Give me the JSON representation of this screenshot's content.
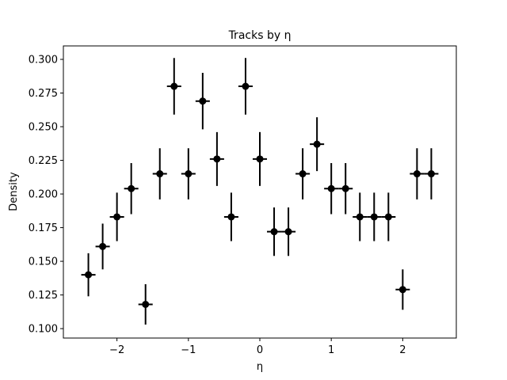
{
  "chart_data": {
    "type": "scatter",
    "title": "Tracks by η",
    "xlabel": "η",
    "ylabel": "Density",
    "xlim": [
      -2.75,
      2.75
    ],
    "ylim": [
      0.093,
      0.31
    ],
    "xticks": [
      -2,
      -1,
      0,
      1,
      2
    ],
    "xtick_labels": [
      "−2",
      "−1",
      "0",
      "1",
      "2"
    ],
    "yticks": [
      0.1,
      0.125,
      0.15,
      0.175,
      0.2,
      0.225,
      0.25,
      0.275,
      0.3
    ],
    "ytick_labels": [
      "0.100",
      "0.125",
      "0.150",
      "0.175",
      "0.200",
      "0.225",
      "0.250",
      "0.275",
      "0.300"
    ],
    "grid": false,
    "marker_color": "#000000",
    "points": [
      {
        "x": -2.4,
        "y": 0.14,
        "xerr": 0.1,
        "yerr_low": 0.016,
        "yerr_high": 0.016
      },
      {
        "x": -2.2,
        "y": 0.161,
        "xerr": 0.1,
        "yerr_low": 0.017,
        "yerr_high": 0.017
      },
      {
        "x": -2.0,
        "y": 0.183,
        "xerr": 0.1,
        "yerr_low": 0.018,
        "yerr_high": 0.018
      },
      {
        "x": -1.8,
        "y": 0.204,
        "xerr": 0.1,
        "yerr_low": 0.019,
        "yerr_high": 0.019
      },
      {
        "x": -1.6,
        "y": 0.118,
        "xerr": 0.1,
        "yerr_low": 0.015,
        "yerr_high": 0.015
      },
      {
        "x": -1.4,
        "y": 0.215,
        "xerr": 0.1,
        "yerr_low": 0.019,
        "yerr_high": 0.019
      },
      {
        "x": -1.2,
        "y": 0.28,
        "xerr": 0.1,
        "yerr_low": 0.021,
        "yerr_high": 0.021
      },
      {
        "x": -1.0,
        "y": 0.215,
        "xerr": 0.1,
        "yerr_low": 0.019,
        "yerr_high": 0.019
      },
      {
        "x": -0.8,
        "y": 0.269,
        "xerr": 0.1,
        "yerr_low": 0.021,
        "yerr_high": 0.021
      },
      {
        "x": -0.6,
        "y": 0.226,
        "xerr": 0.1,
        "yerr_low": 0.02,
        "yerr_high": 0.02
      },
      {
        "x": -0.4,
        "y": 0.183,
        "xerr": 0.1,
        "yerr_low": 0.018,
        "yerr_high": 0.018
      },
      {
        "x": -0.2,
        "y": 0.28,
        "xerr": 0.1,
        "yerr_low": 0.021,
        "yerr_high": 0.021
      },
      {
        "x": 0.0,
        "y": 0.226,
        "xerr": 0.1,
        "yerr_low": 0.02,
        "yerr_high": 0.02
      },
      {
        "x": 0.2,
        "y": 0.172,
        "xerr": 0.1,
        "yerr_low": 0.018,
        "yerr_high": 0.018
      },
      {
        "x": 0.4,
        "y": 0.172,
        "xerr": 0.1,
        "yerr_low": 0.018,
        "yerr_high": 0.018
      },
      {
        "x": 0.6,
        "y": 0.215,
        "xerr": 0.1,
        "yerr_low": 0.019,
        "yerr_high": 0.019
      },
      {
        "x": 0.8,
        "y": 0.237,
        "xerr": 0.1,
        "yerr_low": 0.02,
        "yerr_high": 0.02
      },
      {
        "x": 1.0,
        "y": 0.204,
        "xerr": 0.1,
        "yerr_low": 0.019,
        "yerr_high": 0.019
      },
      {
        "x": 1.2,
        "y": 0.204,
        "xerr": 0.1,
        "yerr_low": 0.019,
        "yerr_high": 0.019
      },
      {
        "x": 1.4,
        "y": 0.183,
        "xerr": 0.1,
        "yerr_low": 0.018,
        "yerr_high": 0.018
      },
      {
        "x": 1.6,
        "y": 0.183,
        "xerr": 0.1,
        "yerr_low": 0.018,
        "yerr_high": 0.018
      },
      {
        "x": 1.8,
        "y": 0.183,
        "xerr": 0.1,
        "yerr_low": 0.018,
        "yerr_high": 0.018
      },
      {
        "x": 2.0,
        "y": 0.129,
        "xerr": 0.1,
        "yerr_low": 0.015,
        "yerr_high": 0.015
      },
      {
        "x": 2.2,
        "y": 0.215,
        "xerr": 0.1,
        "yerr_low": 0.019,
        "yerr_high": 0.019
      },
      {
        "x": 2.4,
        "y": 0.215,
        "xerr": 0.1,
        "yerr_low": 0.019,
        "yerr_high": 0.019
      }
    ]
  }
}
